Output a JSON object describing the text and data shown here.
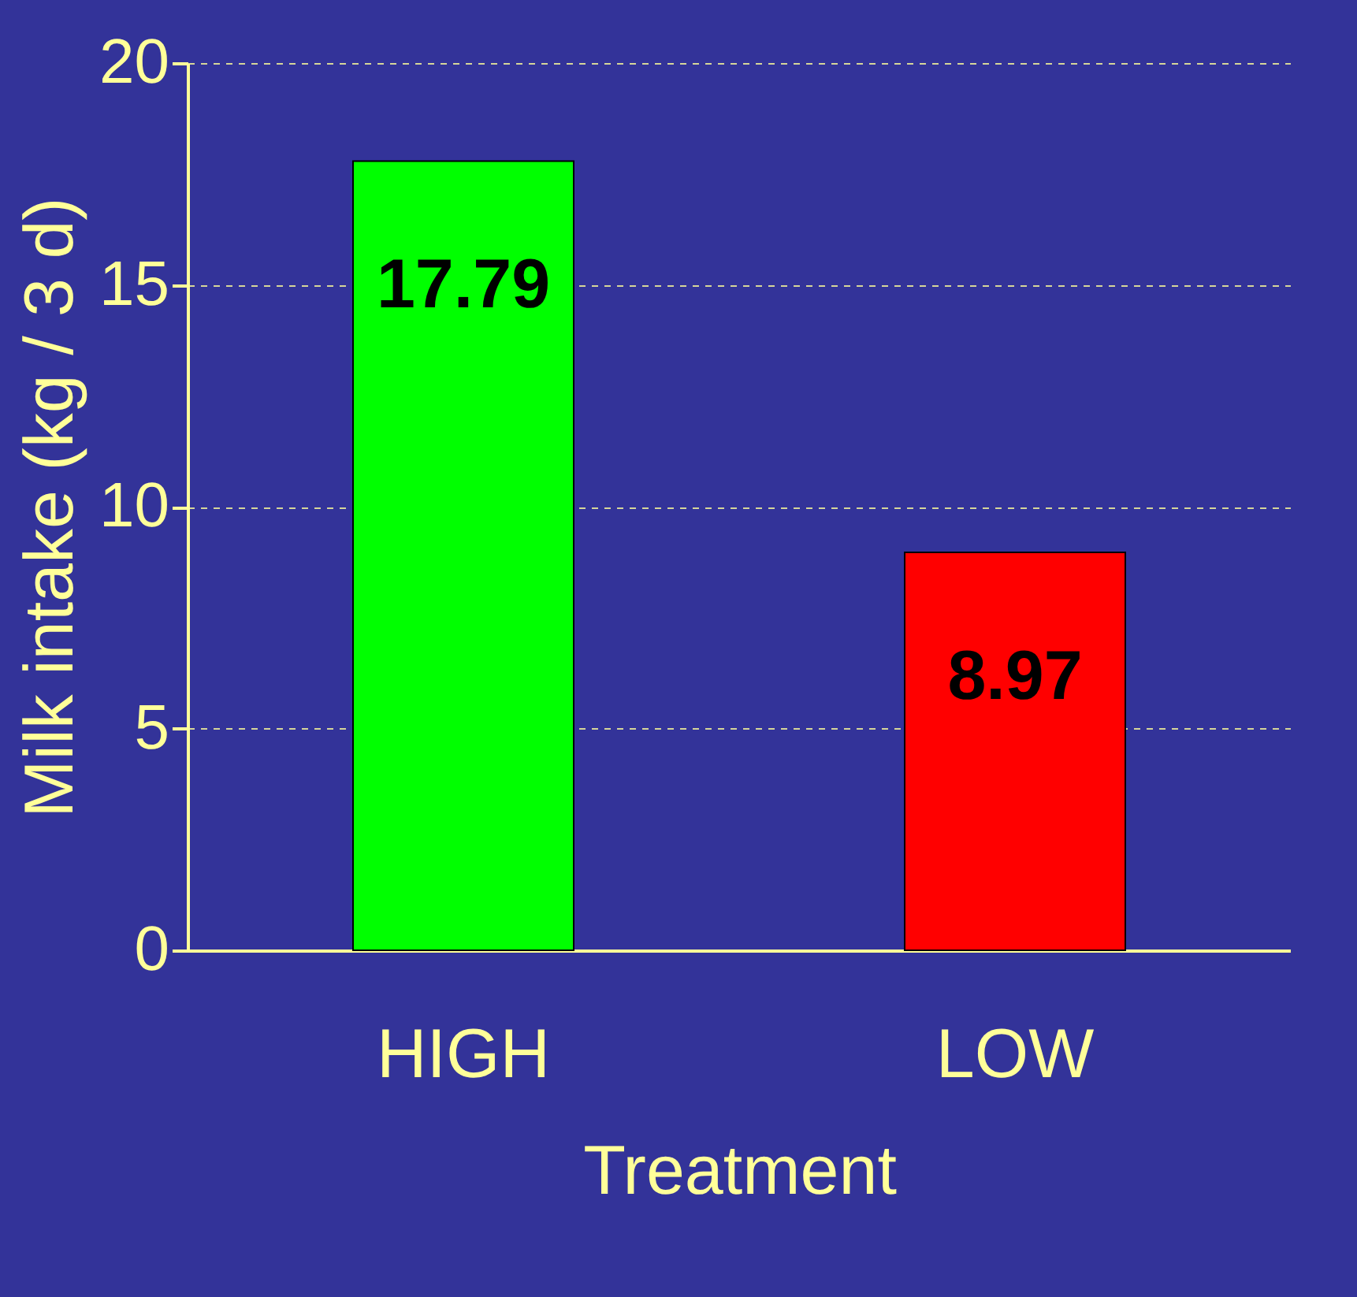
{
  "chart_data": {
    "type": "bar",
    "xlabel": "Treatment",
    "ylabel": "Milk intake (kg / 3 d)",
    "categories": [
      "HIGH",
      "LOW"
    ],
    "values": [
      17.79,
      8.97
    ],
    "colors": [
      "#00ff00",
      "#ff0000"
    ],
    "ylim": [
      0,
      20
    ],
    "yticks": [
      0,
      5,
      10,
      15,
      20
    ],
    "grid": "y",
    "data_labels": true
  }
}
